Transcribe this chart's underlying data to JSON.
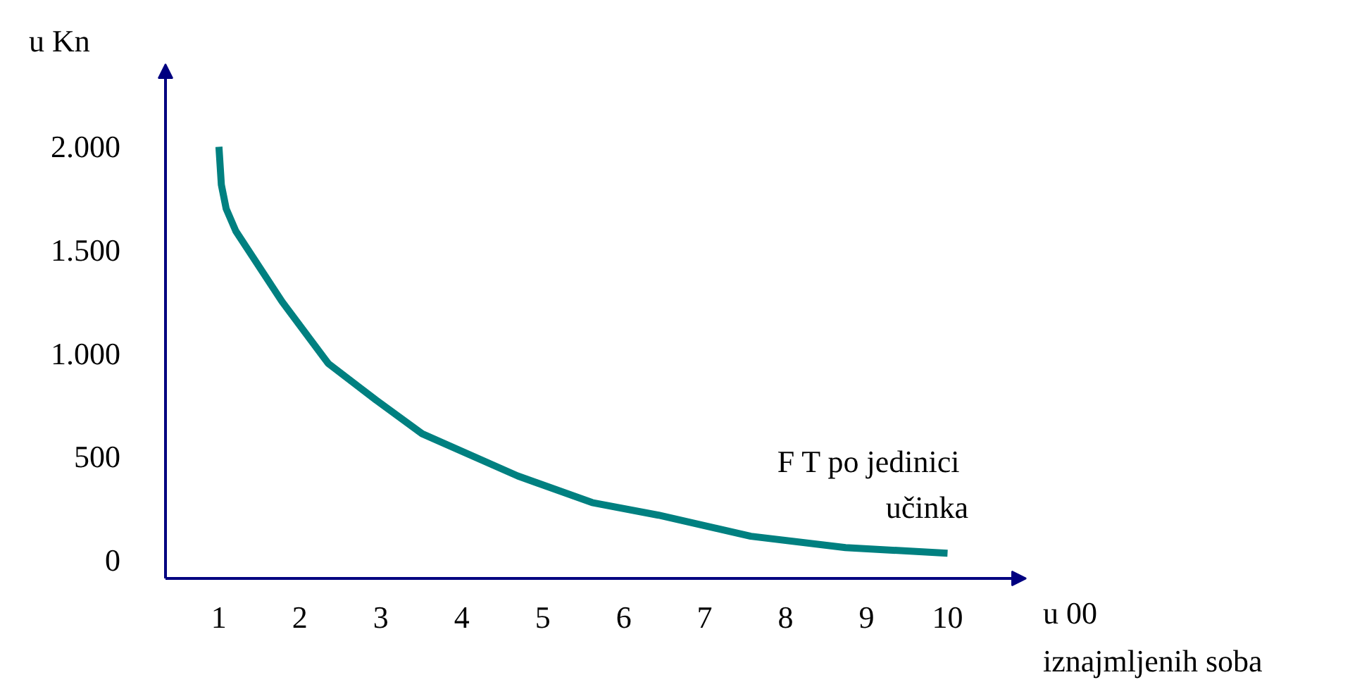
{
  "chart_data": {
    "type": "line",
    "xlabel": "u 00\niznajmljenih soba",
    "ylabel": "u Kn",
    "x": [
      1,
      1.03,
      1.09,
      1.21,
      1.78,
      2.35,
      2.94,
      3.51,
      4.69,
      5.61,
      6.43,
      7.57,
      8.74,
      10
    ],
    "series": [
      {
        "color": "#008080",
        "values": [
          2000,
          1816,
          1700,
          1591,
          1251,
          952,
          775,
          612,
          408,
          279,
          218,
          116,
          61,
          34
        ]
      }
    ],
    "xlim": [
      0.34,
      10.97
    ],
    "ylim": [
      -88,
      2400
    ],
    "xticks": [
      1,
      2,
      3,
      4,
      5,
      6,
      7,
      8,
      9,
      10
    ],
    "yticks": [
      {
        "value": 0,
        "label": "0"
      },
      {
        "value": 500,
        "label": "500"
      },
      {
        "value": 1000,
        "label": "1.000"
      },
      {
        "value": 1500,
        "label": "1.500"
      },
      {
        "value": 2000,
        "label": "2.000"
      }
    ],
    "annotations": [
      "F T  po jedinici\nučinka"
    ],
    "marker": "none",
    "line_style": "solid"
  }
}
